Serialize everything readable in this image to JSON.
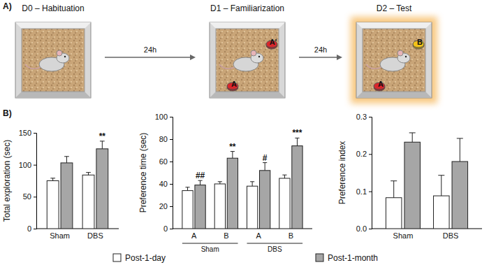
{
  "panel_a": {
    "panel_label": "A)",
    "stages": [
      {
        "label": "D0 – Habituation",
        "objects": []
      },
      {
        "label": "D1 – Familiarization",
        "objects": [
          {
            "label": "A'",
            "color": "#d9262b"
          },
          {
            "label": "A",
            "color": "#d9262b"
          }
        ]
      },
      {
        "label": "D2 – Test",
        "objects": [
          {
            "label": "B",
            "color": "#f2c318"
          },
          {
            "label": "A",
            "color": "#d9262b"
          }
        ]
      }
    ],
    "intervals": [
      "24h",
      "24h"
    ]
  },
  "panel_b_label": "B)",
  "chart_data": [
    {
      "type": "bar",
      "y_label": "Total exploration (sec)",
      "categories": [
        "Sham",
        "DBS"
      ],
      "series": [
        {
          "name": "Post-1-day",
          "color": "#ffffff",
          "values": [
            75,
            84
          ],
          "errors": [
            4,
            4
          ]
        },
        {
          "name": "Post-1-month",
          "color": "#a6a6a6",
          "values": [
            103,
            125
          ],
          "errors": [
            10,
            12
          ]
        }
      ],
      "ylim": [
        0,
        150
      ],
      "yticks": [
        0,
        50,
        100,
        150
      ],
      "annotations": [
        {
          "text": "**",
          "category": 1,
          "series": 1
        }
      ],
      "legend": "bottom"
    },
    {
      "type": "bar",
      "y_label": "Preference time (sec)",
      "categories": [
        "A",
        "B",
        "A",
        "B"
      ],
      "groups": [
        {
          "name": "Sham",
          "span": [
            0,
            1
          ]
        },
        {
          "name": "DBS",
          "span": [
            2,
            3
          ]
        }
      ],
      "series": [
        {
          "color": "#ffffff",
          "values": [
            34,
            40,
            38,
            45
          ],
          "errors": [
            3,
            2,
            4,
            3
          ]
        },
        {
          "color": "#a6a6a6",
          "values": [
            39,
            63,
            52,
            74
          ],
          "errors": [
            4,
            6,
            7,
            7
          ]
        }
      ],
      "ylim": [
        0,
        100
      ],
      "yticks": [
        0,
        20,
        40,
        60,
        80,
        100
      ],
      "annotations": [
        {
          "text": "##",
          "category": 0,
          "series": 1
        },
        {
          "text": "**",
          "category": 1,
          "series": 1
        },
        {
          "text": "#",
          "category": 2,
          "series": 1
        },
        {
          "text": "***",
          "category": 3,
          "series": 1
        }
      ]
    },
    {
      "type": "bar",
      "y_label": "Preference index",
      "categories": [
        "Sham",
        "DBS"
      ],
      "series": [
        {
          "color": "#ffffff",
          "values": [
            0.083,
            0.088
          ],
          "errors": [
            0.045,
            0.055
          ]
        },
        {
          "color": "#a6a6a6",
          "values": [
            0.232,
            0.18
          ],
          "errors": [
            0.025,
            0.062
          ]
        }
      ],
      "ylim": [
        0,
        0.3
      ],
      "yticks": [
        {
          "value": 0,
          "label": "0.0"
        },
        0.1,
        0.2,
        0.3
      ]
    }
  ]
}
